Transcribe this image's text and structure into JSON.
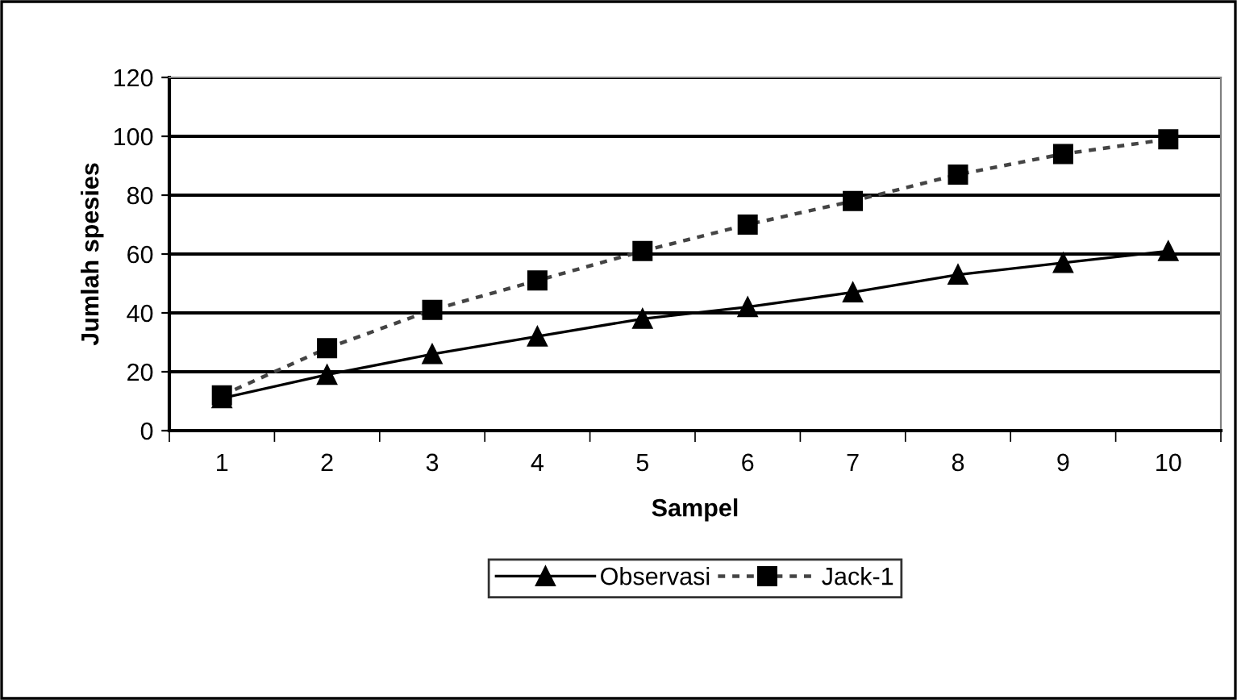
{
  "chart_data": {
    "type": "line",
    "xlabel": "Sampel",
    "ylabel": "Jumlah spesies",
    "categories": [
      "1",
      "2",
      "3",
      "4",
      "5",
      "6",
      "7",
      "8",
      "9",
      "10"
    ],
    "series": [
      {
        "name": "Observasi",
        "color": "#000000",
        "marker": "triangle",
        "line_style": "solid",
        "values": [
          11,
          19,
          26,
          32,
          38,
          42,
          47,
          53,
          57,
          61
        ]
      },
      {
        "name": "Jack-1",
        "color": "#000000",
        "marker": "square",
        "line_style": "dotted",
        "values": [
          12,
          28,
          41,
          51,
          61,
          70,
          78,
          87,
          94,
          99
        ]
      }
    ],
    "ylim": [
      0,
      120
    ],
    "yticks": [
      0,
      20,
      40,
      60,
      80,
      100,
      120
    ],
    "grid": "y",
    "legend": "bottom"
  }
}
